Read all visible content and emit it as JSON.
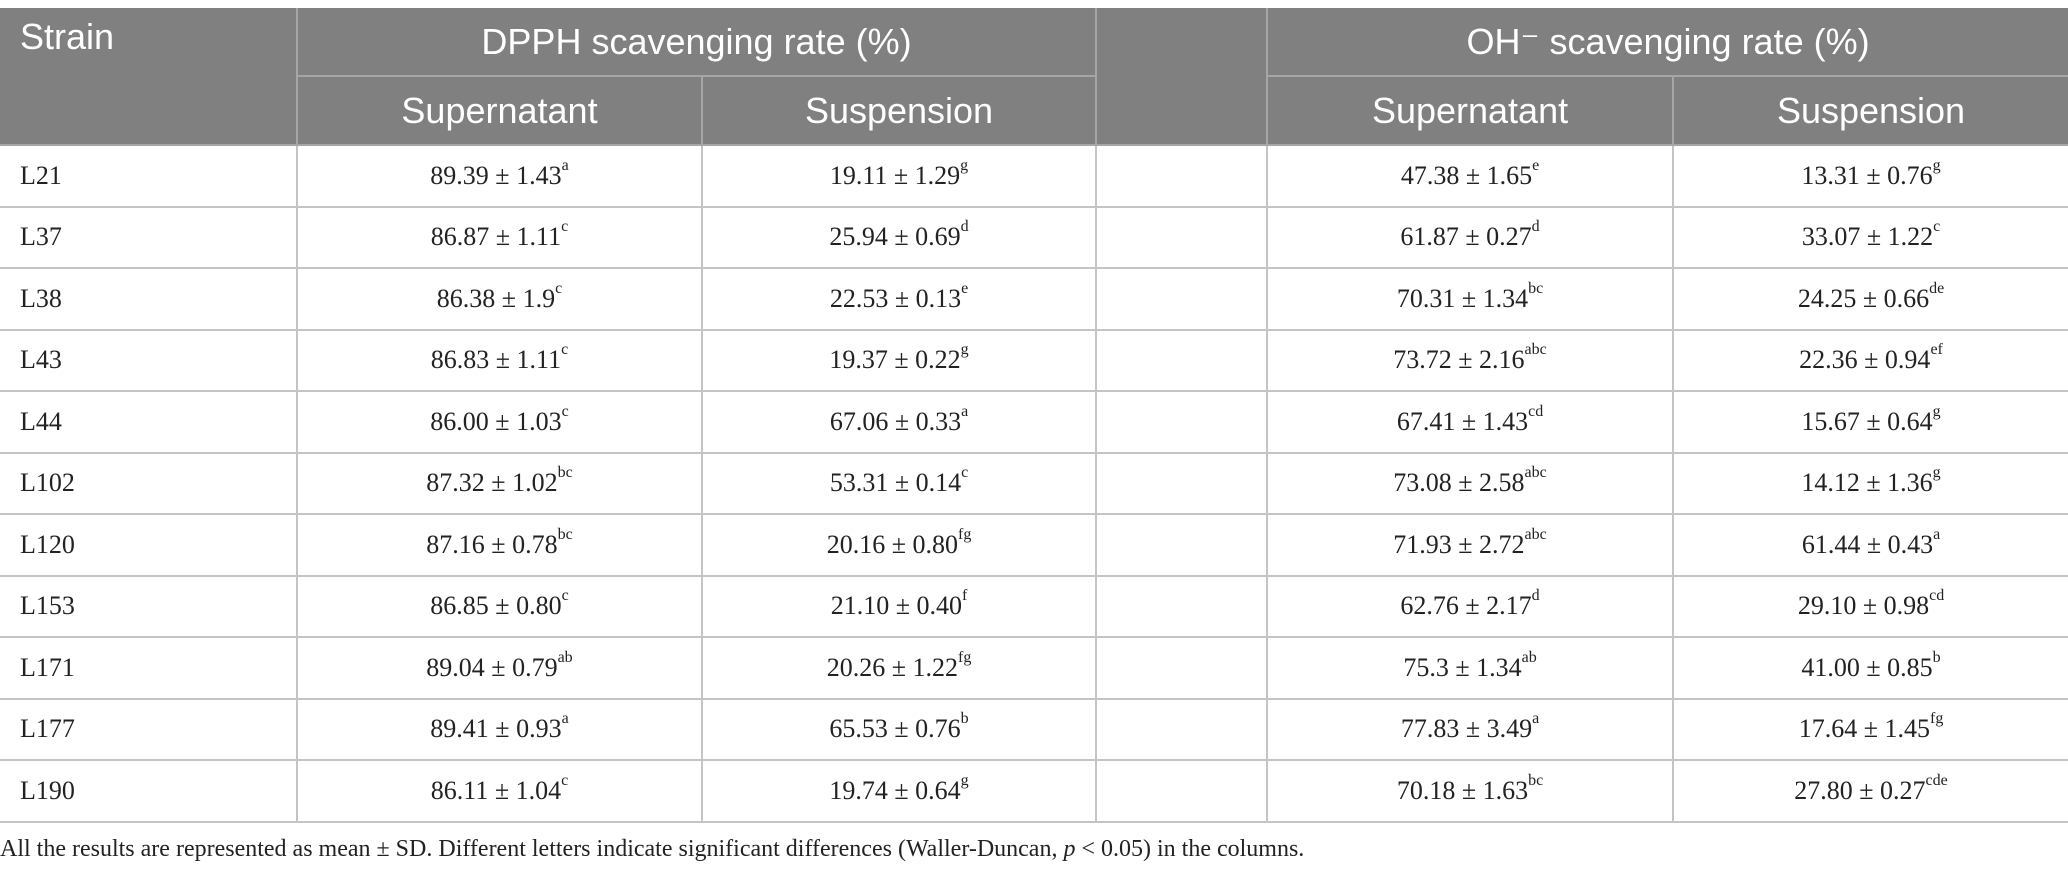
{
  "header": {
    "strain": "Strain",
    "dpph_group": "DPPH scavenging rate (%)",
    "oh_group": "OH⁻ scavenging rate (%)",
    "supernatant": "Supernatant",
    "suspension": "Suspension"
  },
  "rows": [
    {
      "strain": "L21",
      "dpph_sup": "89.39 ± 1.43",
      "dpph_sup_l": "a",
      "dpph_sus": "19.11 ± 1.29",
      "dpph_sus_l": "g",
      "oh_sup": "47.38 ± 1.65",
      "oh_sup_l": "e",
      "oh_sus": "13.31 ± 0.76",
      "oh_sus_l": "g"
    },
    {
      "strain": "L37",
      "dpph_sup": "86.87 ± 1.11",
      "dpph_sup_l": "c",
      "dpph_sus": "25.94 ± 0.69",
      "dpph_sus_l": "d",
      "oh_sup": "61.87 ± 0.27",
      "oh_sup_l": "d",
      "oh_sus": "33.07 ± 1.22",
      "oh_sus_l": "c"
    },
    {
      "strain": "L38",
      "dpph_sup": "86.38 ± 1.9",
      "dpph_sup_l": "c",
      "dpph_sus": "22.53 ± 0.13",
      "dpph_sus_l": "e",
      "oh_sup": "70.31 ± 1.34",
      "oh_sup_l": "bc",
      "oh_sus": "24.25 ± 0.66",
      "oh_sus_l": "de"
    },
    {
      "strain": "L43",
      "dpph_sup": "86.83 ± 1.11",
      "dpph_sup_l": "c",
      "dpph_sus": "19.37 ± 0.22",
      "dpph_sus_l": "g",
      "oh_sup": "73.72 ± 2.16",
      "oh_sup_l": "abc",
      "oh_sus": "22.36 ± 0.94",
      "oh_sus_l": "ef"
    },
    {
      "strain": "L44",
      "dpph_sup": "86.00 ± 1.03",
      "dpph_sup_l": "c",
      "dpph_sus": "67.06 ± 0.33",
      "dpph_sus_l": "a",
      "oh_sup": "67.41 ± 1.43",
      "oh_sup_l": "cd",
      "oh_sus": "15.67 ± 0.64",
      "oh_sus_l": "g"
    },
    {
      "strain": "L102",
      "dpph_sup": "87.32 ± 1.02",
      "dpph_sup_l": "bc",
      "dpph_sus": "53.31 ± 0.14",
      "dpph_sus_l": "c",
      "oh_sup": "73.08 ± 2.58",
      "oh_sup_l": "abc",
      "oh_sus": "14.12 ± 1.36",
      "oh_sus_l": "g"
    },
    {
      "strain": "L120",
      "dpph_sup": "87.16 ± 0.78",
      "dpph_sup_l": "bc",
      "dpph_sus": "20.16 ± 0.80",
      "dpph_sus_l": "fg",
      "oh_sup": "71.93 ± 2.72",
      "oh_sup_l": "abc",
      "oh_sus": "61.44 ± 0.43",
      "oh_sus_l": "a"
    },
    {
      "strain": "L153",
      "dpph_sup": "86.85 ± 0.80",
      "dpph_sup_l": "c",
      "dpph_sus": "21.10 ± 0.40",
      "dpph_sus_l": "f",
      "oh_sup": "62.76 ± 2.17",
      "oh_sup_l": "d",
      "oh_sus": "29.10 ± 0.98",
      "oh_sus_l": "cd"
    },
    {
      "strain": "L171",
      "dpph_sup": "89.04 ± 0.79",
      "dpph_sup_l": "ab",
      "dpph_sus": "20.26 ± 1.22",
      "dpph_sus_l": "fg",
      "oh_sup": "75.3 ± 1.34",
      "oh_sup_l": "ab",
      "oh_sus": "41.00 ± 0.85",
      "oh_sus_l": "b"
    },
    {
      "strain": "L177",
      "dpph_sup": "89.41 ± 0.93",
      "dpph_sup_l": "a",
      "dpph_sus": "65.53 ± 0.76",
      "dpph_sus_l": "b",
      "oh_sup": "77.83 ± 3.49",
      "oh_sup_l": "a",
      "oh_sus": "17.64 ± 1.45",
      "oh_sus_l": "fg"
    },
    {
      "strain": "L190",
      "dpph_sup": "86.11 ± 1.04",
      "dpph_sup_l": "c",
      "dpph_sus": "19.74 ± 0.64",
      "dpph_sus_l": "g",
      "oh_sup": "70.18 ± 1.63",
      "oh_sup_l": "bc",
      "oh_sus": "27.80 ± 0.27",
      "oh_sus_l": "cde"
    }
  ],
  "footnote": {
    "part1": "All the results are represented as mean ± SD. Different letters indicate significant differences (Waller-Duncan, ",
    "p": "p",
    "part2": " < 0.05) in the columns."
  }
}
